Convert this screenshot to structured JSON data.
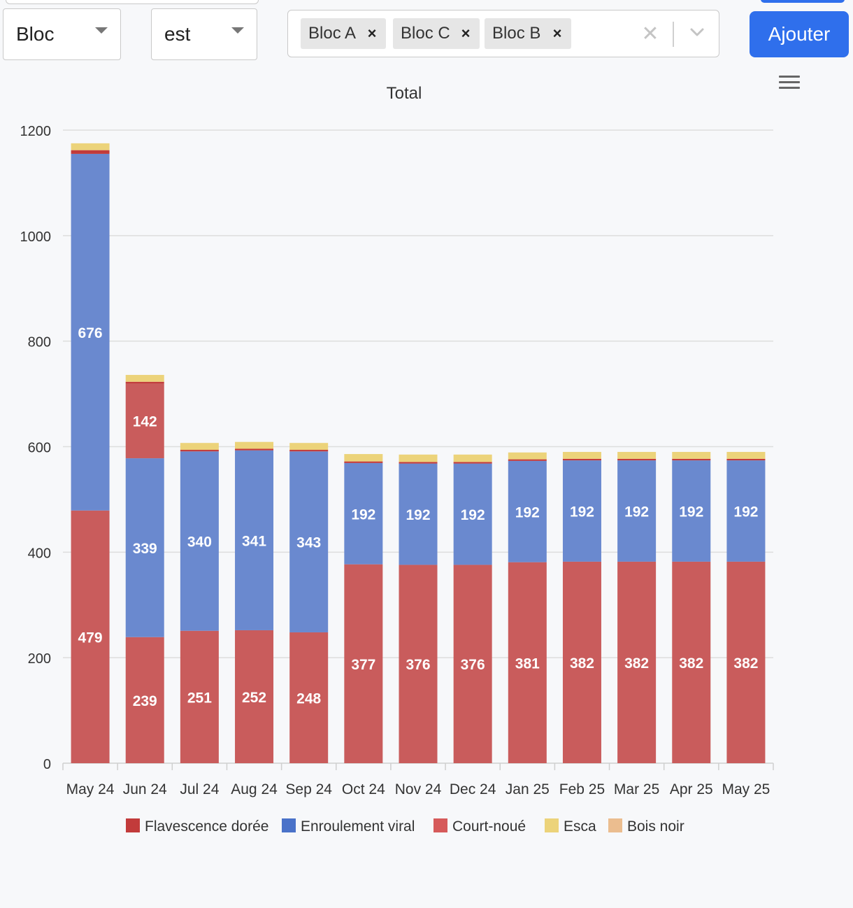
{
  "filters": {
    "field_select": "Bloc",
    "operator_select": "est",
    "selected_values": [
      "Bloc A",
      "Bloc C",
      "Bloc B"
    ],
    "remove_symbol": "×",
    "clear_symbol": "✕",
    "add_button": "Ajouter"
  },
  "icons": {
    "menu": "hamburger-menu-icon",
    "dropdown": "chevron-down-icon",
    "remove": "close-icon"
  },
  "chart_data": {
    "type": "bar",
    "stacked": true,
    "title": "Total",
    "xlabel": "",
    "ylabel": "",
    "ylim": [
      0,
      1200
    ],
    "yticks": [
      0,
      200,
      400,
      600,
      800,
      1000,
      1200
    ],
    "grid": true,
    "legend_position": "bottom",
    "categories": [
      "May 24",
      "Jun 24",
      "Jul 24",
      "Aug 24",
      "Sep 24",
      "Oct 24",
      "Nov 24",
      "Dec 24",
      "Jan 25",
      "Feb 25",
      "Mar 25",
      "Apr 25",
      "May 25"
    ],
    "series": [
      {
        "name": "Flavescence dorée",
        "color": "#c23b3b",
        "values": [
          0,
          0,
          0,
          0,
          0,
          0,
          0,
          0,
          0,
          0,
          0,
          0,
          0
        ],
        "show_labels": false
      },
      {
        "name": "Court-noué",
        "color": "#c95c5c",
        "values": [
          479,
          239,
          251,
          252,
          248,
          377,
          376,
          376,
          381,
          382,
          382,
          382,
          382
        ],
        "show_labels": true
      },
      {
        "name": "Enroulement viral",
        "color": "#6a89cf",
        "values": [
          676,
          339,
          340,
          341,
          343,
          192,
          192,
          192,
          192,
          192,
          192,
          192,
          192
        ],
        "show_labels": true
      },
      {
        "name": "Court-noué (part 2)",
        "legend": false,
        "color": "#c95c5c",
        "values": [
          0,
          142,
          0,
          0,
          0,
          0,
          0,
          0,
          0,
          0,
          0,
          0,
          0
        ],
        "show_labels": true
      },
      {
        "name": "Flavescence dorée (part 2)",
        "legend": false,
        "color": "#c23b3b",
        "values": [
          7,
          3,
          3,
          3,
          3,
          3,
          3,
          3,
          3,
          3,
          3,
          3,
          3
        ],
        "show_labels": false
      },
      {
        "name": "Esca",
        "color": "#ecd37a",
        "values": [
          13,
          13,
          13,
          13,
          13,
          14,
          14,
          14,
          13,
          13,
          13,
          13,
          13
        ],
        "show_labels": false
      },
      {
        "name": "Bois noir",
        "color": "#ebbd8f",
        "values": [
          0,
          0,
          0,
          0,
          0,
          0,
          0,
          0,
          0,
          0,
          0,
          0,
          0
        ],
        "show_labels": false
      }
    ],
    "legend": [
      {
        "name": "Flavescence dorée",
        "color": "#c23b3b"
      },
      {
        "name": "Enroulement viral",
        "color": "#4a72c9"
      },
      {
        "name": "Court-noué",
        "color": "#d65a5a"
      },
      {
        "name": "Esca",
        "color": "#ecd37a"
      },
      {
        "name": "Bois noir",
        "color": "#ebbd8f"
      }
    ]
  }
}
